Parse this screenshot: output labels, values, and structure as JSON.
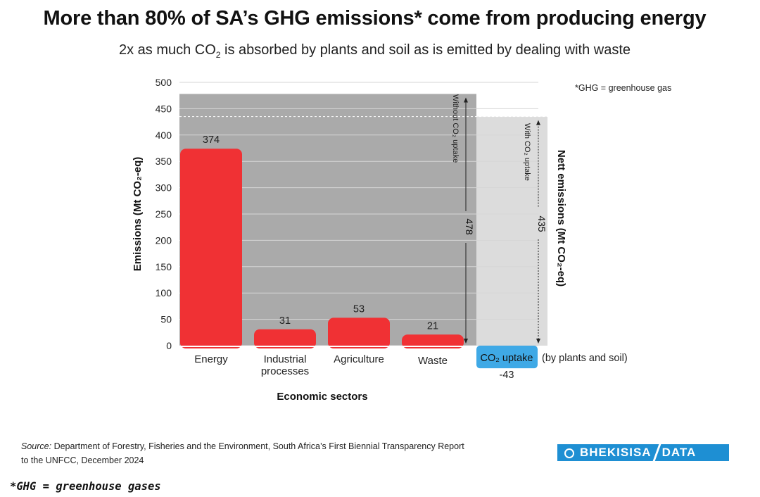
{
  "title": "More than 80% of SA’s GHG emissions* come from producing energy",
  "subtitle": {
    "pre": "2x as much CO",
    "sub": "2",
    "post": " is absorbed by plants and soil as is emitted by dealing with waste"
  },
  "chart_data": {
    "type": "bar",
    "categories": [
      "Energy",
      "Industrial processes",
      "Agriculture",
      "Waste"
    ],
    "values": [
      374,
      31,
      53,
      21
    ],
    "value_labels": [
      "374",
      "31",
      "53",
      "21"
    ],
    "uptake": {
      "label": "CO₂ uptake",
      "note": "(by plants and soil)",
      "value": -43,
      "value_label": "-43"
    },
    "ylabel": "Emissions (Mt CO₂-eq)",
    "xlabel": "Economic sectors",
    "right_label": "Nett emissions (Mt CO₂-eq)",
    "ylim": [
      0,
      500
    ],
    "yticks": [
      0,
      50,
      100,
      150,
      200,
      250,
      300,
      350,
      400,
      450,
      500
    ],
    "grid": true,
    "totals": {
      "without": {
        "value": 478,
        "label": "478",
        "caption": "Without CO₂ uptake"
      },
      "with": {
        "value": 435,
        "label": "435",
        "caption": "With CO₂ uptake"
      }
    },
    "footnote_in_chart": "*GHG = greenhouse gas",
    "colors": {
      "bar": "#f03134",
      "uptake": "#3fa9e6",
      "shade_dark": "#aaaaaa",
      "shade_light": "#dcdcdc"
    }
  },
  "source": {
    "label": "Source:",
    "text": "Department of Forestry, Fisheries and the Environment, South Africa’s First Biennial Transparency Report to the UNFCC, December 2024"
  },
  "logo": {
    "left": "BHEKISISA",
    "right": "DATA"
  },
  "footnote": "*GHG = greenhouse gases"
}
